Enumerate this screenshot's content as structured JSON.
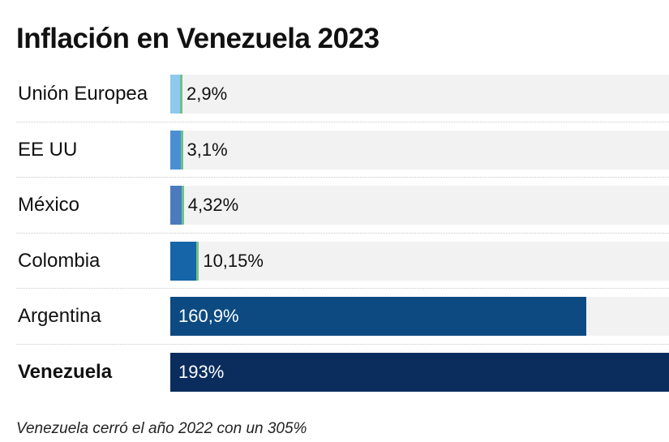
{
  "chart_data": {
    "type": "bar",
    "orientation": "horizontal",
    "title": "Inflación en Venezuela 2023",
    "categories": [
      "Unión Europea",
      "EE UU",
      "México",
      "Colombia",
      "Argentina",
      "Venezuela"
    ],
    "values": [
      2.9,
      3.1,
      4.32,
      10.15,
      160.9,
      193
    ],
    "value_labels": [
      "2,9%",
      "3,1%",
      "4,32%",
      "10,15%",
      "160,9%",
      "193%"
    ],
    "bar_colors": [
      "#8ec9ee",
      "#4a8fd4",
      "#4a7bbd",
      "#1565a8",
      "#0d4a82",
      "#0b2d5e"
    ],
    "highlight": "Venezuela",
    "xlim": [
      0,
      193
    ],
    "footnote": "Venezuela cerró el año 2022 con un 305%"
  }
}
